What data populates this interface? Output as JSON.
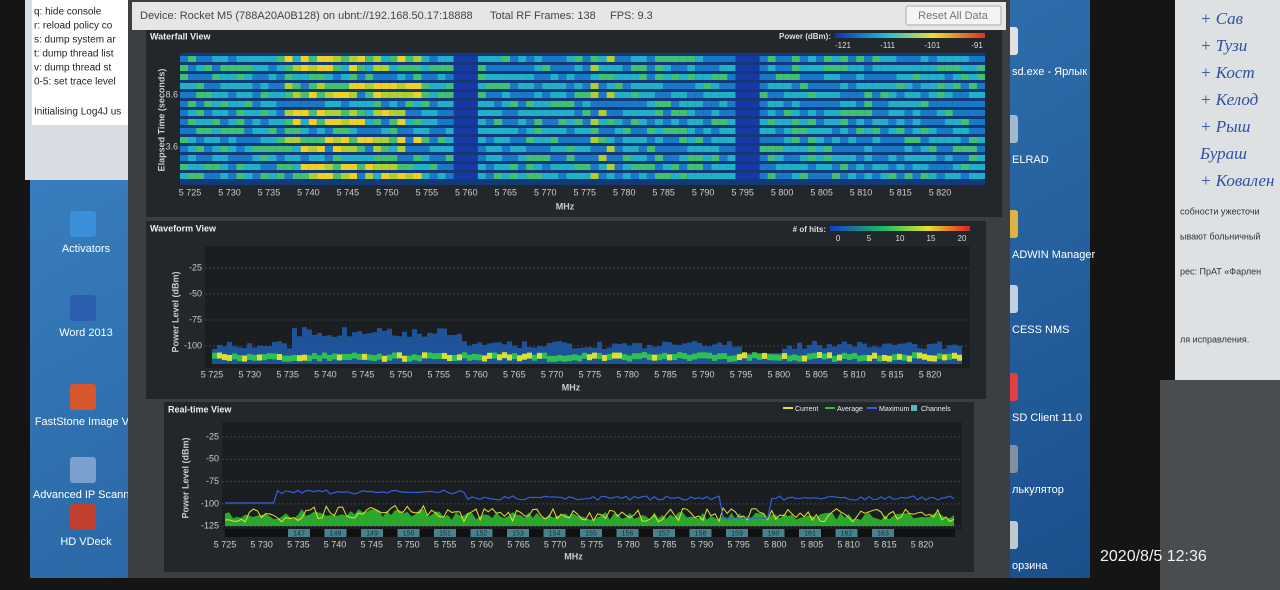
{
  "console": {
    "lines": [
      "q:   hide console",
      "r:   reload policy co",
      "s:   dump system ar",
      "t:   dump thread list",
      "v:   dump thread st",
      "0-5: set trace level",
      "Initialising Log4J us"
    ]
  },
  "desktop_left": {
    "icons": [
      "Activators",
      "Word 2013",
      "FastStone Image V...",
      "Advanced IP Scanner",
      "HD VDeck"
    ]
  },
  "desktop_right": {
    "icons": [
      "sd.exe - Ярлык",
      "ELRAD",
      "ADWIN Manager",
      "CESS NMS",
      "SD Client 11.0",
      "лькулятор",
      "орзина"
    ]
  },
  "app": {
    "toolbar": {
      "device": "Device: Rocket M5 (788A20A0B128) on ubnt://192.168.50.17:18888",
      "frames": "Total RF Frames: 138",
      "fps": "FPS: 9.3",
      "reset": "Reset All Data"
    },
    "waterfall": {
      "title": "Waterfall View",
      "legend_label": "Power (dBm):",
      "legend_ticks": [
        "-121",
        "-111",
        "-101",
        "-91"
      ],
      "y_label": "Elapsed Time (seconds)",
      "yticks": [
        "8.6",
        "3.6"
      ],
      "xticks": [
        "5 725",
        "5 730",
        "5 735",
        "5 740",
        "5 745",
        "5 750",
        "5 755",
        "5 760",
        "5 765",
        "5 770",
        "5 775",
        "5 780",
        "5 785",
        "5 790",
        "5 795",
        "5 800",
        "5 805",
        "5 810",
        "5 815",
        "5 820"
      ],
      "x_label": "MHz"
    },
    "waveform": {
      "title": "Waveform View",
      "legend_label": "# of hits:",
      "legend_ticks": [
        "0",
        "5",
        "10",
        "15",
        "20"
      ],
      "y_label": "Power Level (dBm)",
      "yticks": [
        "-25",
        "-50",
        "-75",
        "-100"
      ],
      "xticks": [
        "5 725",
        "5 730",
        "5 735",
        "5 740",
        "5 745",
        "5 750",
        "5 755",
        "5 760",
        "5 765",
        "5 770",
        "5 775",
        "5 780",
        "5 785",
        "5 790",
        "5 795",
        "5 800",
        "5 805",
        "5 810",
        "5 815",
        "5 820"
      ],
      "x_label": "MHz"
    },
    "realtime": {
      "title": "Real-time View",
      "legend": [
        {
          "name": "Current",
          "color": "#e8e030"
        },
        {
          "name": "Average",
          "color": "#30c030"
        },
        {
          "name": "Maximum",
          "color": "#3060e0"
        },
        {
          "name": "Channels",
          "color": "#60b0c0"
        }
      ],
      "y_label": "Power Level (dBm)",
      "yticks": [
        "-25",
        "-50",
        "-75",
        "-100",
        "-125"
      ],
      "channels": [
        "147",
        "148",
        "149",
        "150",
        "151",
        "152",
        "153",
        "154",
        "155",
        "156",
        "157",
        "158",
        "159",
        "160",
        "161",
        "162",
        "163"
      ],
      "xticks": [
        "5 725",
        "5 730",
        "5 735",
        "5 740",
        "5 745",
        "5 750",
        "5 755",
        "5 760",
        "5 765",
        "5 770",
        "5 775",
        "5 780",
        "5 785",
        "5 790",
        "5 795",
        "5 800",
        "5 805",
        "5 810",
        "5 815",
        "5 820"
      ],
      "x_label": "MHz"
    }
  },
  "notes": {
    "handwritten": [
      "+ Сав",
      "+ Тузи",
      "+ Кост",
      "+ Келод",
      "+ Рыш",
      "Бураш",
      "+ Ковален"
    ],
    "printed": [
      "собности ужесточи",
      "ывают больничный",
      "рес: ПрАТ «Фарлен",
      "ля исправления."
    ]
  },
  "clock": "2020/8/5  12:36"
}
